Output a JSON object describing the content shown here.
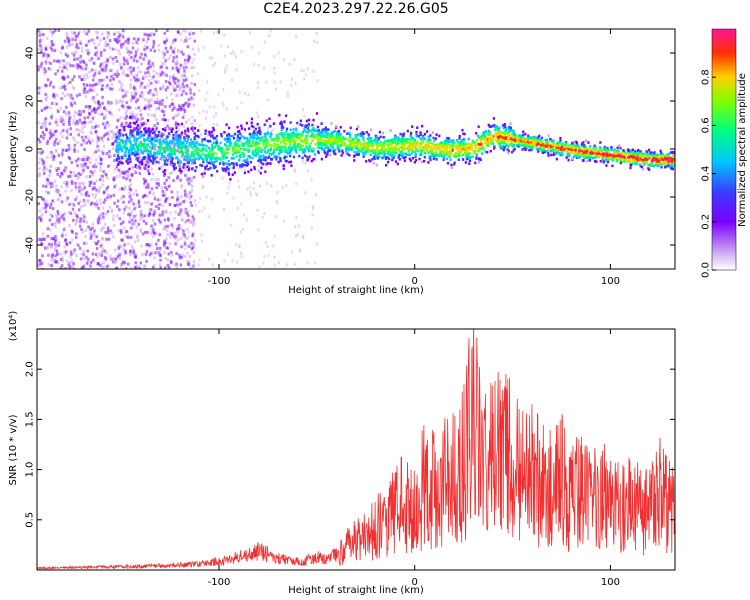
{
  "title": "C2E4.2023.297.22.26.G05",
  "chart_data": [
    {
      "type": "heatmap",
      "xlabel": "Height of straight line (km)",
      "ylabel": "Frequency (Hz)",
      "xlim": [
        -193,
        133
      ],
      "ylim": [
        -50,
        50
      ],
      "x_ticks": [
        -100,
        0,
        100
      ],
      "y_ticks": [
        -40,
        -20,
        0,
        20,
        40
      ],
      "colorbar": {
        "label": "Normalized spectral amplitude",
        "range": [
          0,
          1
        ],
        "ticks": [
          "0.0",
          "0.2",
          "0.4",
          "0.6",
          "0.8"
        ],
        "colormap": [
          "#ffffff",
          "#c9a0f0",
          "#7b00ff",
          "#3a3aff",
          "#00c8ff",
          "#00ff80",
          "#80ff00",
          "#ffd000",
          "#ff3000",
          "#ff1493"
        ]
      },
      "ridge": {
        "x": [
          -140,
          -120,
          -100,
          -80,
          -60,
          -40,
          -20,
          0,
          20,
          30,
          40,
          60,
          80,
          100,
          120,
          133
        ],
        "frequency": [
          2,
          0,
          -1,
          2,
          4,
          4,
          1,
          2,
          0,
          1,
          6,
          3,
          0,
          -2,
          -4,
          -4
        ]
      }
    },
    {
      "type": "line",
      "xlabel": "Height of straight line (km)",
      "ylabel": "SNR (10 * v/v)",
      "y_multiplier": "(x10⁴)",
      "xlim": [
        -193,
        133
      ],
      "ylim": [
        0,
        2.4
      ],
      "x_ticks": [
        -100,
        0,
        100
      ],
      "y_ticks": [
        "0.5",
        "1.0",
        "1.5",
        "2.0"
      ],
      "series": [
        {
          "color": "#f03030",
          "x": [
            -193,
            -170,
            -150,
            -130,
            -110,
            -95,
            -85,
            -80,
            -70,
            -60,
            -55,
            -50,
            -45,
            -40,
            -35,
            -30,
            -25,
            -20,
            -15,
            -10,
            -5,
            0,
            5,
            10,
            15,
            20,
            25,
            30,
            35,
            40,
            45,
            50,
            55,
            60,
            65,
            70,
            75,
            80,
            85,
            90,
            95,
            100,
            105,
            110,
            115,
            120,
            125,
            133
          ],
          "y": [
            0.02,
            0.03,
            0.04,
            0.05,
            0.07,
            0.12,
            0.18,
            0.22,
            0.14,
            0.1,
            0.12,
            0.15,
            0.12,
            0.2,
            0.35,
            0.45,
            0.55,
            0.65,
            0.75,
            0.9,
            1.05,
            0.95,
            1.3,
            1.2,
            1.5,
            1.4,
            1.7,
            2.35,
            1.6,
            1.8,
            1.7,
            1.9,
            1.4,
            1.5,
            1.3,
            1.2,
            1.4,
            1.1,
            1.2,
            1.0,
            1.3,
            1.1,
            0.9,
            1.0,
            0.95,
            0.9,
            1.2,
            0.9
          ]
        }
      ]
    }
  ]
}
